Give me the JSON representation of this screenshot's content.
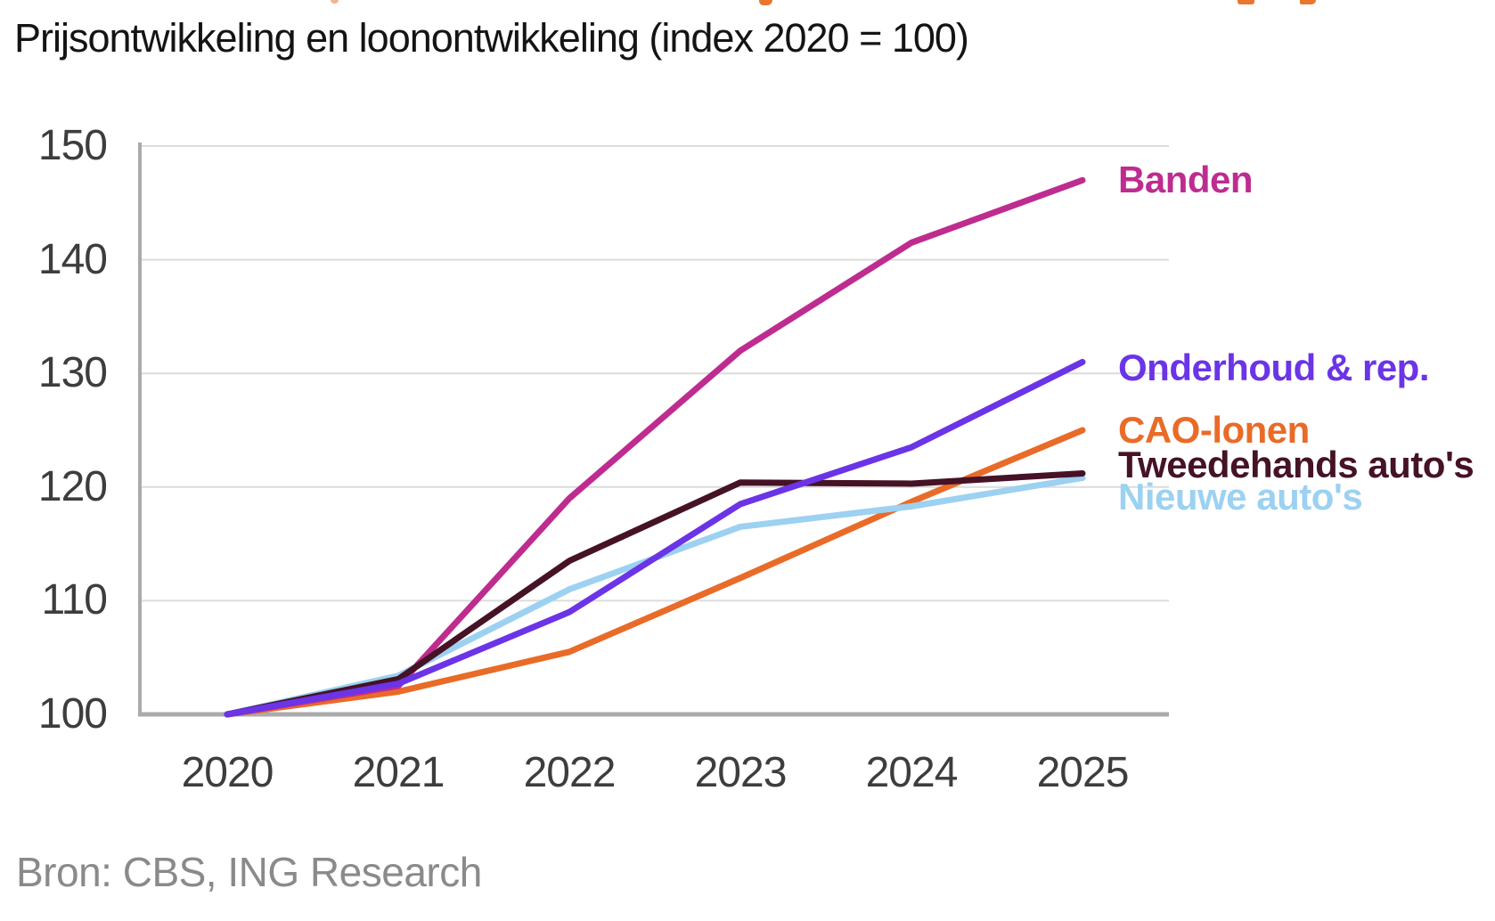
{
  "page": {
    "subtitle": "Prijsontwikkeling en loonontwikkeling (index 2020 = 100)",
    "source": "Bron: CBS, ING Research"
  },
  "chart_data": {
    "type": "line",
    "title": "Prijsontwikkeling en loonontwikkeling (index 2020 = 100)",
    "x": [
      2020,
      2021,
      2022,
      2023,
      2024,
      2025
    ],
    "xlabel": "",
    "ylabel": "",
    "ylim": [
      100,
      150
    ],
    "y_ticks": [
      100,
      110,
      120,
      130,
      140,
      150
    ],
    "grid": "horizontal",
    "legend_position": "right-end-labels",
    "series": [
      {
        "name": "Banden",
        "color": "#BE2C90",
        "values": [
          100,
          102.5,
          119,
          132,
          141.5,
          147
        ]
      },
      {
        "name": "Onderhoud & rep.",
        "color": "#6B34E6",
        "values": [
          100,
          102.7,
          109,
          118.5,
          123.5,
          131
        ]
      },
      {
        "name": "CAO-lonen",
        "color": "#E96B28",
        "values": [
          100,
          102,
          105.5,
          112,
          118.7,
          125
        ]
      },
      {
        "name": "Tweedehands auto's",
        "color": "#451226",
        "values": [
          100,
          103.1,
          113.5,
          120.4,
          120.3,
          121.2
        ]
      },
      {
        "name": "Nieuwe auto's",
        "color": "#9CD1F1",
        "values": [
          100,
          103.4,
          111,
          116.5,
          118.3,
          120.8
        ]
      }
    ],
    "source": "Bron: CBS, ING Research"
  },
  "colors": {
    "grid": "#DCDCDC",
    "axis": "#ABABAB",
    "tick_text": "#3D3D3D",
    "title_text": "#141414",
    "source_text": "#8A8A8A",
    "cropped_fragment": "#E8762F"
  }
}
